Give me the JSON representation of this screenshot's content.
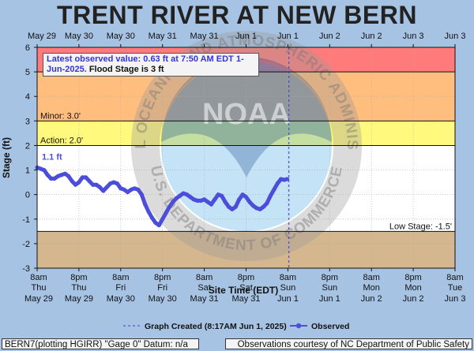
{
  "title": "TRENT RIVER AT NEW BERN",
  "notice": {
    "observed_text": "Latest observed value: 0.63 ft at 7:50 AM EDT 1-Jun-2025.",
    "flood_text": "Flood Stage is 3 ft"
  },
  "watermark_text": "NATIONAL OCEANIC AND ATMOSPHERIC ADMINISTRATION · U.S. DEPARTMENT OF COMMERCE",
  "footer": {
    "left": "BERN7(plotting HGIRR) \"Gage 0\" Datum: n/a",
    "right": "Observations courtesy of NC Department of Public Safety"
  },
  "colors": {
    "major": "#ff7b7b",
    "moderate": "#ffbe7d",
    "flood": "#ffbe7d",
    "minor_band": "#fff97d",
    "action_band": "#ffffff",
    "low_band": "#d4b78f",
    "observed": "#4d4ddb",
    "background": "#a7c3e4"
  },
  "chart_data": {
    "type": "line",
    "xlabel": "Site Time (EDT)",
    "ylabel": "Stage (ft)",
    "ylim": [
      -3,
      6
    ],
    "xlim": [
      "2025-05-29 08:00",
      "2025-06-03 08:00"
    ],
    "yticks": [
      -3,
      -2,
      -1,
      0,
      1,
      2,
      3,
      4,
      5,
      6
    ],
    "top_ticks": [
      "May 29",
      "May 30",
      "May 30",
      "May 31",
      "May 31",
      "Jun 1",
      "Jun 1",
      "Jun 2",
      "Jun 2",
      "Jun 3",
      "Jun 3"
    ],
    "bottom_ticks": [
      {
        "time": "8am",
        "day": "Thu",
        "date": "May 29"
      },
      {
        "time": "8pm",
        "day": "Thu",
        "date": "May 29"
      },
      {
        "time": "8am",
        "day": "Fri",
        "date": "May 30"
      },
      {
        "time": "8pm",
        "day": "Fri",
        "date": "May 30"
      },
      {
        "time": "8am",
        "day": "Sat",
        "date": "May 31"
      },
      {
        "time": "8pm",
        "day": "Sat",
        "date": "May 31"
      },
      {
        "time": "8am",
        "day": "Sun",
        "date": "Jun 1"
      },
      {
        "time": "8pm",
        "day": "Sun",
        "date": "Jun 1"
      },
      {
        "time": "8am",
        "day": "Mon",
        "date": "Jun 2"
      },
      {
        "time": "8pm",
        "day": "Mon",
        "date": "Jun 2"
      },
      {
        "time": "8am",
        "day": "Tue",
        "date": "Jun 3"
      }
    ],
    "thresholds": [
      {
        "label": "Minor: 3.0'",
        "value": 3.0
      },
      {
        "label": "Action: 2.0'",
        "value": 2.0
      },
      {
        "label": "Low Stage: -1.5'",
        "value": -1.5
      }
    ],
    "graph_created_label": "Graph Created (8:17AM Jun 1, 2025)",
    "graph_created_hours": 72.3,
    "first_value_label": "1.1 ft",
    "series": [
      {
        "name": "Observed",
        "hours": [
          0,
          1,
          2,
          3,
          4,
          5,
          6,
          7,
          8,
          9,
          10,
          11,
          12,
          13,
          14,
          15,
          16,
          17,
          18,
          19,
          20,
          21,
          22,
          23,
          24,
          25,
          26,
          27,
          28,
          29,
          30,
          31,
          32,
          33,
          34,
          35,
          36,
          37,
          38,
          39,
          40,
          41,
          42,
          43,
          44,
          45,
          46,
          47,
          48,
          49,
          50,
          51,
          52,
          53,
          54,
          55,
          56,
          57,
          58,
          59,
          60,
          61,
          62,
          63,
          64,
          65,
          66,
          67,
          68,
          69,
          70,
          71,
          71.8
        ],
        "values": [
          1.1,
          1.05,
          1.0,
          0.8,
          0.65,
          0.65,
          0.75,
          0.8,
          0.85,
          0.75,
          0.55,
          0.4,
          0.5,
          0.7,
          0.7,
          0.55,
          0.4,
          0.4,
          0.3,
          0.15,
          0.3,
          0.45,
          0.5,
          0.45,
          0.25,
          0.2,
          0.1,
          0.2,
          0.25,
          0.2,
          0.0,
          -0.4,
          -0.7,
          -0.95,
          -1.15,
          -1.25,
          -1.0,
          -0.75,
          -0.5,
          -0.3,
          -0.15,
          -0.05,
          0.05,
          0.0,
          -0.1,
          -0.2,
          -0.25,
          -0.25,
          -0.2,
          -0.3,
          -0.4,
          -0.2,
          0.0,
          -0.05,
          -0.3,
          -0.5,
          -0.6,
          -0.5,
          -0.2,
          0.0,
          -0.1,
          -0.3,
          -0.45,
          -0.55,
          -0.6,
          -0.5,
          -0.35,
          -0.05,
          0.2,
          0.45,
          0.63,
          0.6,
          0.63
        ]
      }
    ],
    "legend": [
      {
        "name": "Graph Created (8:17AM Jun 1, 2025)",
        "style": "dashed"
      },
      {
        "name": "Observed",
        "style": "line-dot"
      }
    ],
    "legend_position": "bottom",
    "grid": true
  }
}
